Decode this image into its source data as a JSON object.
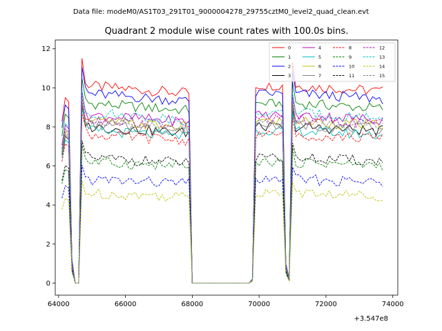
{
  "chart_data": {
    "type": "line",
    "suptitle": "Data file: modeM0/AS1T03_291T01_9000004278_29755cztM0_level2_quad_clean.evt",
    "title": "Quadrant 2 module wise count rates with 100.0s bins.",
    "xlabel": "",
    "ylabel": "",
    "x_offset_label": "+3.547e8",
    "xlim": [
      63900,
      74150
    ],
    "ylim": [
      -0.62,
      12.45
    ],
    "xticks": [
      64000,
      66000,
      68000,
      70000,
      72000,
      74000
    ],
    "xtick_labels": [
      "64000",
      "66000",
      "68000",
      "70000",
      "72000",
      "74000"
    ],
    "yticks": [
      0,
      2,
      4,
      6,
      8,
      10,
      12
    ],
    "ytick_labels": [
      "0",
      "2",
      "4",
      "6",
      "8",
      "10",
      "12"
    ],
    "grid": false,
    "legend_position": "top-right",
    "x": [
      64100,
      64200,
      64300,
      64400,
      64500,
      64600,
      64700,
      64800,
      64900,
      65000,
      65100,
      65200,
      65300,
      65400,
      65500,
      65600,
      65700,
      65800,
      65900,
      66000,
      66100,
      66200,
      66300,
      66400,
      66500,
      66600,
      66700,
      66800,
      66900,
      67000,
      67100,
      67200,
      67300,
      67400,
      67500,
      67600,
      67700,
      67800,
      67900,
      68000,
      68100,
      68200,
      68300,
      68400,
      68500,
      68600,
      68700,
      68800,
      68900,
      69000,
      69100,
      69200,
      69300,
      69400,
      69500,
      69600,
      69700,
      69800,
      69900,
      70000,
      70100,
      70200,
      70300,
      70400,
      70500,
      70600,
      70700,
      70800,
      70900,
      71000,
      71100,
      71200,
      71300,
      71400,
      71500,
      71600,
      71700,
      71800,
      71900,
      72000,
      72100,
      72200,
      72300,
      72400,
      72500,
      72600,
      72700,
      72800,
      72900,
      73000,
      73100,
      73200,
      73300,
      73400,
      73500,
      73600,
      73700
    ],
    "series": [
      {
        "name": "0",
        "color": "#ff0000",
        "dash": false,
        "level": 10.1
      },
      {
        "name": "1",
        "color": "#008000",
        "dash": false,
        "level": 9.2
      },
      {
        "name": "2",
        "color": "#0000ff",
        "dash": false,
        "level": 9.7
      },
      {
        "name": "3",
        "color": "#000000",
        "dash": false,
        "level": 8.0
      },
      {
        "name": "4",
        "color": "#bf00bf",
        "dash": false,
        "level": 8.6
      },
      {
        "name": "5",
        "color": "#00bfbf",
        "dash": false,
        "level": 7.8
      },
      {
        "name": "6",
        "color": "#bfbf00",
        "dash": false,
        "level": 8.3
      },
      {
        "name": "7",
        "color": "#808080",
        "dash": false,
        "level": 8.1
      },
      {
        "name": "8",
        "color": "#ff0000",
        "dash": true,
        "level": 7.6
      },
      {
        "name": "9",
        "color": "#008000",
        "dash": true,
        "level": 6.2
      },
      {
        "name": "10",
        "color": "#0000ff",
        "dash": true,
        "level": 5.3
      },
      {
        "name": "11",
        "color": "#000000",
        "dash": true,
        "level": 6.4
      },
      {
        "name": "12",
        "color": "#bf00bf",
        "dash": true,
        "level": 8.4
      },
      {
        "name": "13",
        "color": "#00bfbf",
        "dash": true,
        "level": 8.7
      },
      {
        "name": "14",
        "color": "#bfbf00",
        "dash": true,
        "level": 4.6
      },
      {
        "name": "15",
        "color": "#808080",
        "dash": true,
        "level": 8.2
      }
    ]
  }
}
